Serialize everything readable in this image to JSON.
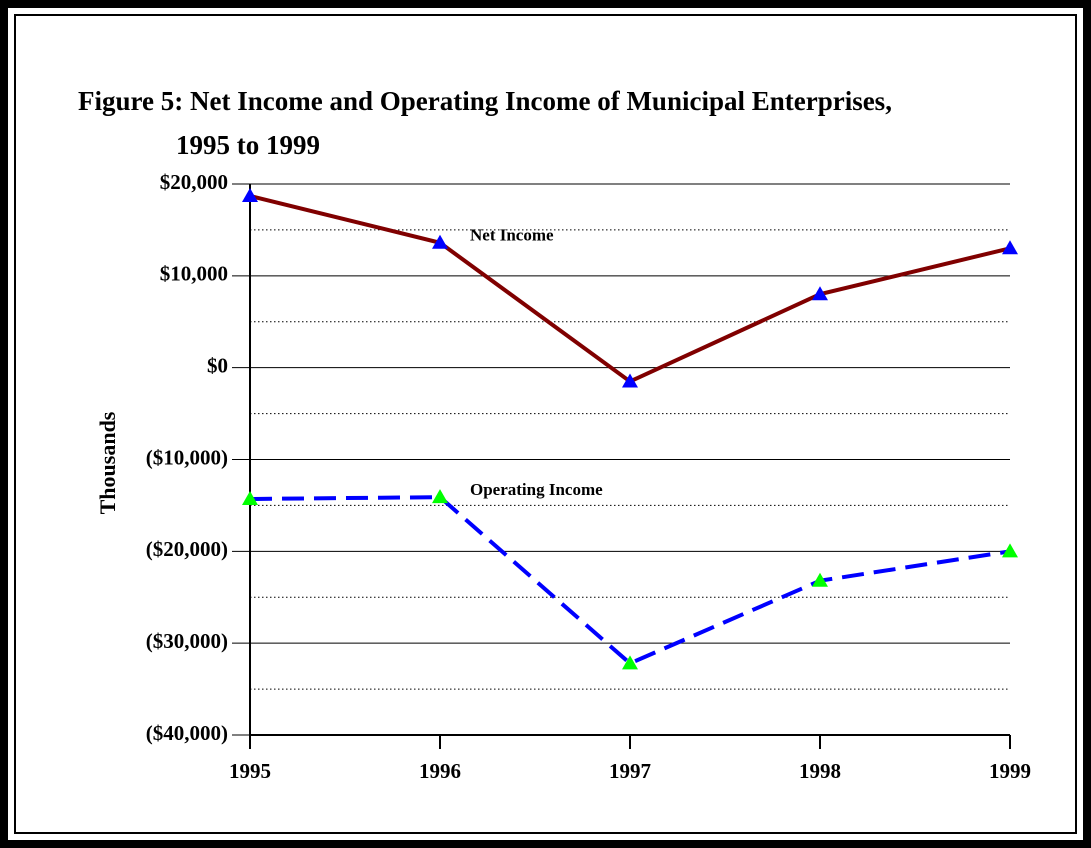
{
  "chart_data": {
    "type": "line",
    "title": [
      "Figure 5:  Net Income and Operating Income of Municipal Enterprises,",
      "1995 to 1999"
    ],
    "y_label": "Thousands",
    "categories": [
      "1995",
      "1996",
      "1997",
      "1998",
      "1999"
    ],
    "series": [
      {
        "name": "Net Income",
        "color": "#800000",
        "marker_color": "#0000ff",
        "dashed": false,
        "values": [
          18700,
          13600,
          -1500,
          8000,
          13000
        ]
      },
      {
        "name": "Operating Income",
        "color": "#0000ff",
        "marker_color": "#00ff00",
        "dashed": true,
        "values": [
          -14300,
          -14100,
          -32200,
          -23200,
          -20000
        ]
      }
    ],
    "ylim": [
      -40000,
      20000
    ],
    "yticks": [
      {
        "value": 20000,
        "label": "$20,000"
      },
      {
        "value": 10000,
        "label": "$10,000"
      },
      {
        "value": 0,
        "label": "$0"
      },
      {
        "value": -10000,
        "label": "($10,000)"
      },
      {
        "value": -20000,
        "label": "($20,000)"
      },
      {
        "value": -30000,
        "label": "($30,000)"
      },
      {
        "value": -40000,
        "label": "($40,000)"
      }
    ],
    "minor_yticks": [
      15000,
      5000,
      -5000,
      -15000,
      -25000,
      -35000
    ],
    "grid": true
  }
}
